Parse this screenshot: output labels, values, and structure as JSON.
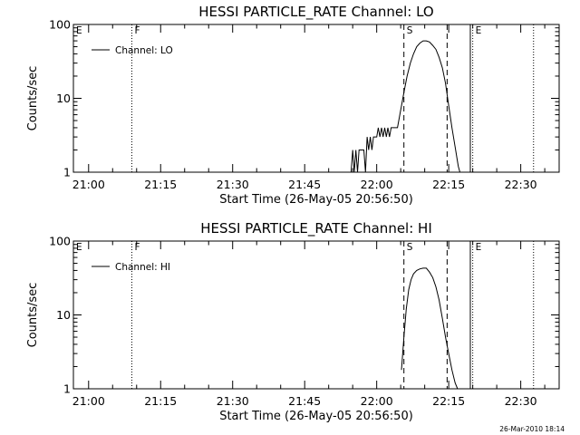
{
  "footer": {
    "timestamp": "26-Mar-2010 18:14"
  },
  "chart_data": [
    {
      "type": "line",
      "title": "HESSI PARTICLE_RATE Channel: LO",
      "xlabel": "Start Time (26-May-05 20:56:50)",
      "ylabel": "Counts/sec",
      "yscale": "log",
      "ylim": [
        1,
        100
      ],
      "xlim": [
        "20:56:50",
        "22:38:00"
      ],
      "x_ticks": [
        "21:00",
        "21:15",
        "21:30",
        "21:45",
        "22:00",
        "22:15",
        "22:30"
      ],
      "y_ticks": [
        "1",
        "10",
        "100"
      ],
      "legend": {
        "position": "top-left",
        "entries": [
          "Channel: LO"
        ]
      },
      "markers": [
        {
          "label": "E",
          "time": "20:56:50",
          "style": "solid"
        },
        {
          "label": "F",
          "time": "21:09:00",
          "style": "dotted"
        },
        {
          "label": "S",
          "time": "22:05:40",
          "style": "dashed"
        },
        {
          "label": "",
          "time": "22:14:40",
          "style": "dashed"
        },
        {
          "label": "",
          "time": "22:19:30",
          "style": "solid"
        },
        {
          "label": "E",
          "time": "22:20:00",
          "style": "dotted"
        },
        {
          "label": "",
          "time": "22:32:40",
          "style": "dotted"
        }
      ],
      "series": [
        {
          "name": "Channel: LO",
          "x": [
            "21:54:40",
            "21:55:00",
            "21:55:20",
            "21:55:40",
            "21:56:00",
            "21:56:20",
            "21:56:40",
            "21:57:00",
            "21:57:20",
            "21:57:40",
            "21:58:00",
            "21:58:20",
            "21:58:40",
            "21:59:00",
            "21:59:20",
            "21:59:40",
            "22:00:00",
            "22:00:20",
            "22:00:40",
            "22:01:00",
            "22:01:20",
            "22:01:40",
            "22:02:00",
            "22:02:20",
            "22:02:40",
            "22:03:00",
            "22:03:20",
            "22:03:40",
            "22:04:00",
            "22:04:20",
            "22:05:00",
            "22:05:40",
            "22:06:20",
            "22:07:00",
            "22:07:40",
            "22:08:20",
            "22:09:00",
            "22:09:40",
            "22:10:20",
            "22:11:00",
            "22:11:40",
            "22:12:20",
            "22:13:00",
            "22:13:40",
            "22:14:20",
            "22:15:00",
            "22:15:40",
            "22:16:20",
            "22:17:00",
            "22:17:20"
          ],
          "values": [
            1,
            2,
            1,
            2,
            1,
            2,
            2,
            2,
            2,
            1,
            3,
            2,
            3,
            2,
            3,
            3,
            3,
            4,
            3,
            4,
            3,
            4,
            3,
            4,
            3,
            4,
            4,
            4,
            4,
            4,
            7,
            12,
            20,
            30,
            40,
            50,
            56,
            60,
            60,
            58,
            52,
            46,
            36,
            26,
            16,
            8,
            4,
            2.2,
            1.2,
            1
          ]
        }
      ]
    },
    {
      "type": "line",
      "title": "HESSI PARTICLE_RATE Channel: HI",
      "xlabel": "Start Time (26-May-05 20:56:50)",
      "ylabel": "Counts/sec",
      "yscale": "log",
      "ylim": [
        1,
        100
      ],
      "xlim": [
        "20:56:50",
        "22:38:00"
      ],
      "x_ticks": [
        "21:00",
        "21:15",
        "21:30",
        "21:45",
        "22:00",
        "22:15",
        "22:30"
      ],
      "y_ticks": [
        "1",
        "10",
        "100"
      ],
      "legend": {
        "position": "top-left",
        "entries": [
          "Channel: HI"
        ]
      },
      "markers": [
        {
          "label": "E",
          "time": "20:56:50",
          "style": "solid"
        },
        {
          "label": "F",
          "time": "21:09:00",
          "style": "dotted"
        },
        {
          "label": "S",
          "time": "22:05:40",
          "style": "dashed"
        },
        {
          "label": "",
          "time": "22:14:40",
          "style": "dashed"
        },
        {
          "label": "",
          "time": "22:19:30",
          "style": "solid"
        },
        {
          "label": "E",
          "time": "22:20:00",
          "style": "dotted"
        },
        {
          "label": "",
          "time": "22:32:40",
          "style": "dotted"
        }
      ],
      "series": [
        {
          "name": "Channel: HI",
          "x": [
            "22:05:10",
            "22:05:40",
            "22:06:10",
            "22:06:40",
            "22:07:10",
            "22:07:40",
            "22:08:20",
            "22:09:00",
            "22:09:40",
            "22:10:20",
            "22:11:00",
            "22:11:40",
            "22:12:20",
            "22:13:00",
            "22:13:40",
            "22:14:20",
            "22:15:00",
            "22:15:40",
            "22:16:20",
            "22:16:50"
          ],
          "values": [
            1.8,
            5,
            12,
            22,
            30,
            36,
            40,
            42,
            43,
            43,
            38,
            32,
            24,
            16,
            9,
            5,
            3,
            1.8,
            1.2,
            1
          ]
        }
      ]
    }
  ]
}
